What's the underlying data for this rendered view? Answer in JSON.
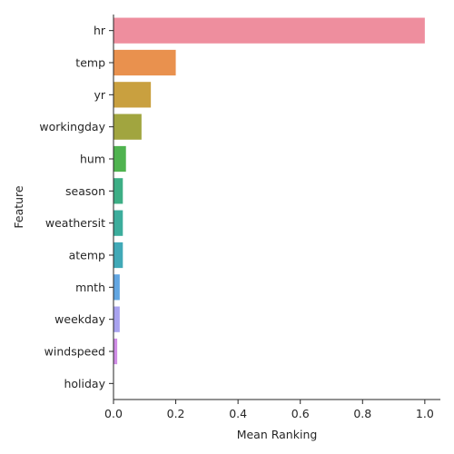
{
  "chart_data": {
    "type": "bar",
    "orientation": "horizontal",
    "categories": [
      "hr",
      "temp",
      "yr",
      "workingday",
      "hum",
      "season",
      "weathersit",
      "atemp",
      "mnth",
      "weekday",
      "windspeed",
      "holiday"
    ],
    "values": [
      1.0,
      0.2,
      0.12,
      0.09,
      0.04,
      0.03,
      0.03,
      0.03,
      0.02,
      0.02,
      0.012,
      0.0
    ],
    "colors": [
      "#EE8E9E",
      "#E9914E",
      "#C9A03F",
      "#A1A53F",
      "#4FB34F",
      "#3DAE85",
      "#3CAD9C",
      "#41A9B7",
      "#62A6E2",
      "#A8A2EF",
      "#D08CE6",
      "#EE82C8"
    ],
    "title": "",
    "xlabel": "Mean Ranking",
    "ylabel": "Feature",
    "xlim": [
      0,
      1.05
    ],
    "xticks": [
      0.0,
      0.2,
      0.4,
      0.6,
      0.8,
      1.0
    ],
    "xtick_labels": [
      "0.0",
      "0.2",
      "0.4",
      "0.6",
      "0.8",
      "1.0"
    ],
    "grid": false,
    "legend": "none"
  }
}
